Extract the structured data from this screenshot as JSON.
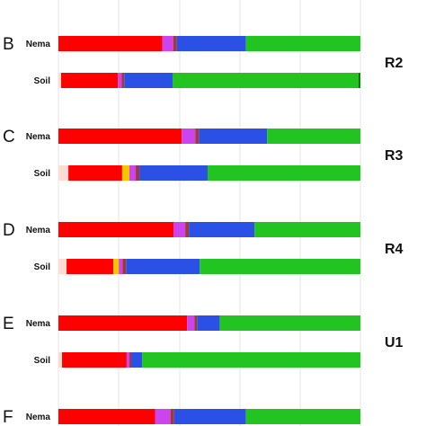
{
  "chart_data": {
    "type": "bar",
    "orientation": "horizontal",
    "stacked": true,
    "normalized": true,
    "grid": true,
    "colors": {
      "pale": "#fadcd2",
      "red": "#ff0000",
      "yellow": "#f5c500",
      "magenta": "#cc44ee",
      "maroon": "#a03a3a",
      "blue": "#2b50e6",
      "green": "#22c422",
      "darkgreen": "#117711"
    },
    "panels": [
      {
        "letter": "B",
        "group": "R2",
        "rows": [
          {
            "label": "Nema",
            "segments": [
              {
                "color": "red",
                "value": 34.4
              },
              {
                "color": "magenta",
                "value": 3.6
              },
              {
                "color": "maroon",
                "value": 1.2
              },
              {
                "color": "blue",
                "value": 22.9
              },
              {
                "color": "green",
                "value": 37.9
              }
            ]
          },
          {
            "label": "Soil",
            "segments": [
              {
                "color": "pale",
                "value": 0.9
              },
              {
                "color": "red",
                "value": 18.8
              },
              {
                "color": "magenta",
                "value": 1.2
              },
              {
                "color": "maroon",
                "value": 0.9
              },
              {
                "color": "blue",
                "value": 16.0
              },
              {
                "color": "green",
                "value": 61.6
              },
              {
                "color": "darkgreen",
                "value": 0.6
              }
            ]
          }
        ]
      },
      {
        "letter": "C",
        "group": "R3",
        "rows": [
          {
            "label": "Nema",
            "segments": [
              {
                "color": "red",
                "value": 40.8
              },
              {
                "color": "magenta",
                "value": 4.5
              },
              {
                "color": "maroon",
                "value": 1.2
              },
              {
                "color": "blue",
                "value": 22.6
              },
              {
                "color": "green",
                "value": 30.9
              }
            ]
          },
          {
            "label": "Soil",
            "segments": [
              {
                "color": "pale",
                "value": 3.3
              },
              {
                "color": "red",
                "value": 17.8
              },
              {
                "color": "yellow",
                "value": 2.4
              },
              {
                "color": "magenta",
                "value": 2.1
              },
              {
                "color": "maroon",
                "value": 1.2
              },
              {
                "color": "blue",
                "value": 22.6
              },
              {
                "color": "green",
                "value": 50.6
              }
            ]
          }
        ]
      },
      {
        "letter": "D",
        "group": "R4",
        "rows": [
          {
            "label": "Nema",
            "segments": [
              {
                "color": "red",
                "value": 38.1
              },
              {
                "color": "magenta",
                "value": 3.9
              },
              {
                "color": "maroon",
                "value": 1.2
              },
              {
                "color": "blue",
                "value": 21.7
              },
              {
                "color": "green",
                "value": 35.1
              }
            ]
          },
          {
            "label": "Soil",
            "segments": [
              {
                "color": "pale",
                "value": 2.7
              },
              {
                "color": "red",
                "value": 15.5
              },
              {
                "color": "yellow",
                "value": 1.8
              },
              {
                "color": "magenta",
                "value": 1.2
              },
              {
                "color": "maroon",
                "value": 1.2
              },
              {
                "color": "blue",
                "value": 24.4
              },
              {
                "color": "green",
                "value": 53.2
              }
            ]
          }
        ]
      },
      {
        "letter": "E",
        "group": "U1",
        "rows": [
          {
            "label": "Nema",
            "segments": [
              {
                "color": "red",
                "value": 42.6
              },
              {
                "color": "magenta",
                "value": 2.4
              },
              {
                "color": "maroon",
                "value": 0.9
              },
              {
                "color": "blue",
                "value": 7.5
              },
              {
                "color": "green",
                "value": 46.6
              }
            ]
          },
          {
            "label": "Soil",
            "segments": [
              {
                "color": "pale",
                "value": 1.2
              },
              {
                "color": "red",
                "value": 21.4
              },
              {
                "color": "magenta",
                "value": 0.9
              },
              {
                "color": "maroon",
                "value": 0.6
              },
              {
                "color": "blue",
                "value": 3.6
              },
              {
                "color": "green",
                "value": 72.3
              }
            ]
          }
        ]
      },
      {
        "letter": "F",
        "group": "",
        "rows": [
          {
            "label": "Nema",
            "segments": [
              {
                "color": "red",
                "value": 32.0
              },
              {
                "color": "magenta",
                "value": 5.1
              },
              {
                "color": "maroon",
                "value": 1.2
              },
              {
                "color": "blue",
                "value": 23.8
              },
              {
                "color": "green",
                "value": 37.9
              }
            ]
          }
        ]
      }
    ]
  }
}
